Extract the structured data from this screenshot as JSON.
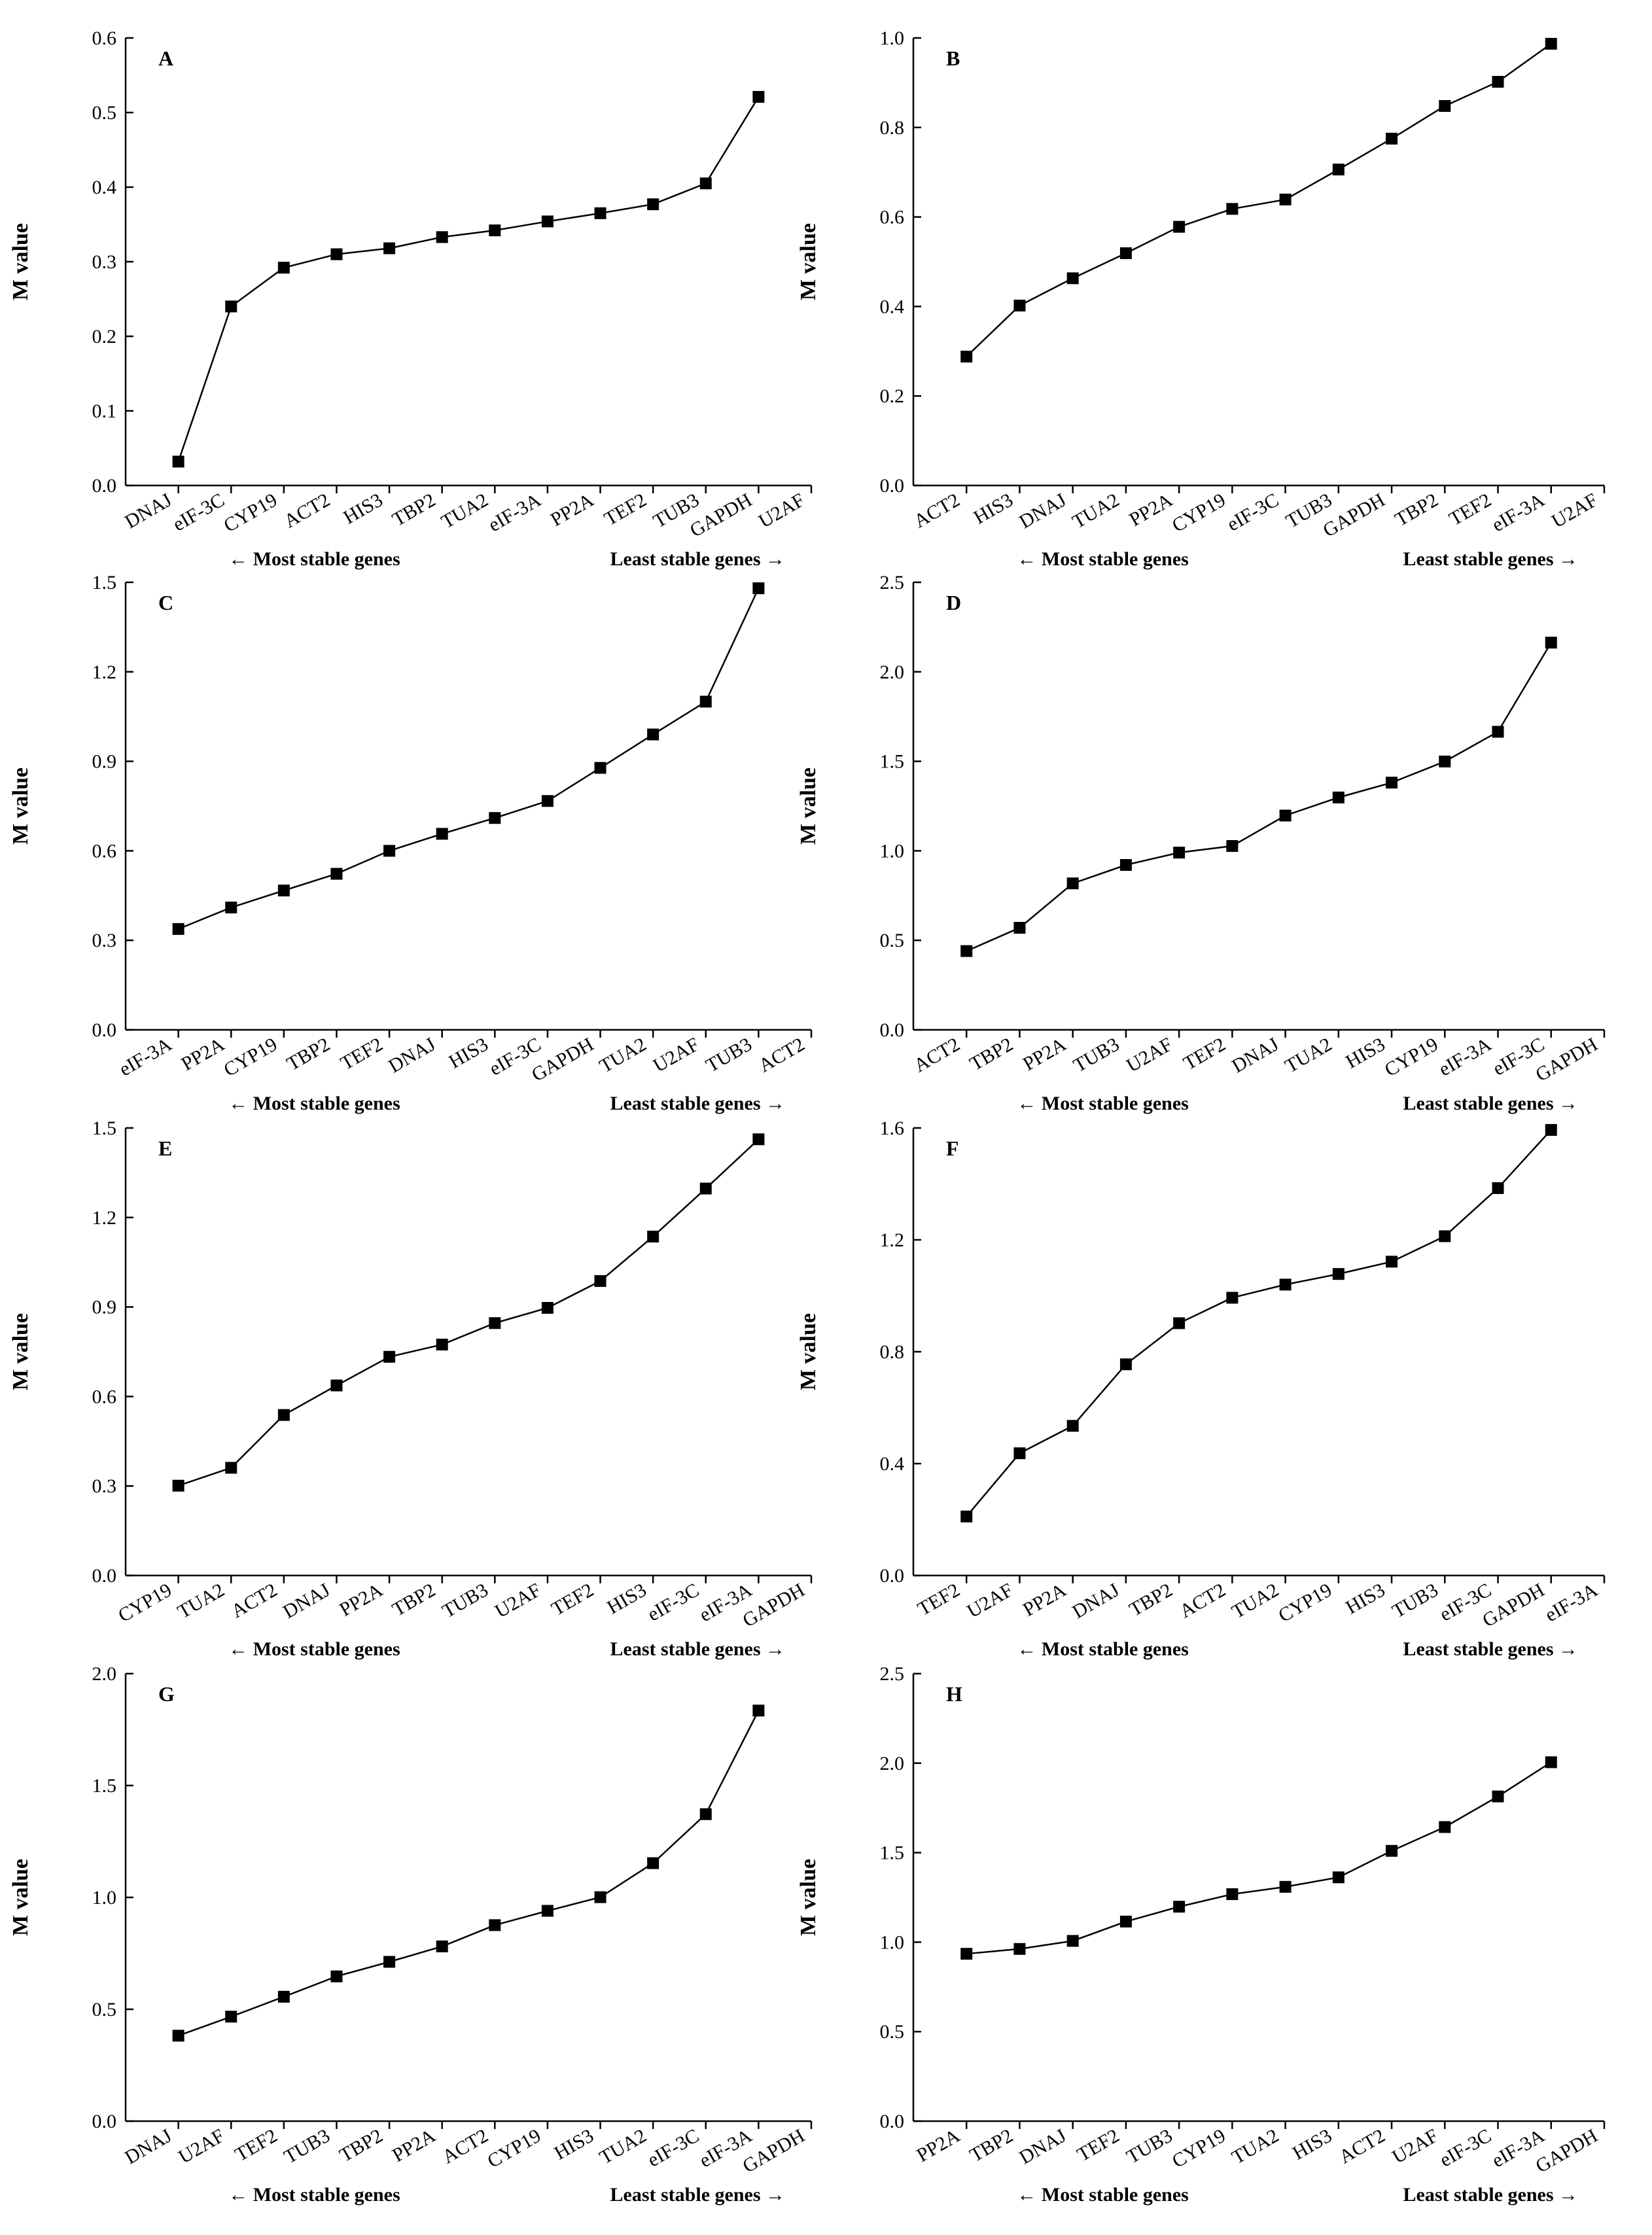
{
  "chart_data": [
    {
      "type": "line",
      "panel": "A",
      "ylabel": "M value",
      "ylim": [
        0,
        0.6
      ],
      "yticks": [
        "0.0",
        "0.1",
        "0.2",
        "0.3",
        "0.4",
        "0.5",
        "0.6"
      ],
      "categories": [
        "DNAJ",
        "eIF-3C",
        "CYP19",
        "ACT2",
        "HIS3",
        "TBP2",
        "TUA2",
        "eIF-3A",
        "PP2A",
        "TEF2",
        "TUB3",
        "GAPDH",
        "U2AF"
      ],
      "x": [
        1,
        2,
        3,
        4,
        5,
        6,
        7,
        8,
        9,
        10,
        11,
        12
      ],
      "values": [
        0.032,
        0.24,
        0.292,
        0.31,
        0.318,
        0.333,
        0.342,
        0.354,
        0.365,
        0.377,
        0.405,
        0.521
      ],
      "left_caption": "← Most stable genes",
      "right_caption": "Least stable genes →"
    },
    {
      "type": "line",
      "panel": "B",
      "ylabel": "M value",
      "ylim": [
        0,
        1.0
      ],
      "yticks": [
        "0.0",
        "0.2",
        "0.4",
        "0.6",
        "0.8",
        "1.0"
      ],
      "categories": [
        "ACT2",
        "HIS3",
        "DNAJ",
        "TUA2",
        "PP2A",
        "CYP19",
        "eIF-3C",
        "TUB3",
        "GAPDH",
        "TBP2",
        "TEF2",
        "eIF-3A",
        "U2AF"
      ],
      "x": [
        1,
        2,
        3,
        4,
        5,
        6,
        7,
        8,
        9,
        10,
        11,
        12
      ],
      "values": [
        0.288,
        0.402,
        0.463,
        0.519,
        0.578,
        0.618,
        0.639,
        0.706,
        0.775,
        0.848,
        0.902,
        0.987
      ],
      "left_caption": "← Most stable genes",
      "right_caption": "Least stable genes →"
    },
    {
      "type": "line",
      "panel": "C",
      "ylabel": "M value",
      "ylim": [
        0,
        1.5
      ],
      "yticks": [
        "0.0",
        "0.3",
        "0.6",
        "0.9",
        "1.2",
        "1.5"
      ],
      "categories": [
        "eIF-3A",
        "PP2A",
        "CYP19",
        "TBP2",
        "TEF2",
        "DNAJ",
        "HIS3",
        "eIF-3C",
        "GAPDH",
        "TUA2",
        "U2AF",
        "TUB3",
        "ACT2"
      ],
      "x": [
        1,
        2,
        3,
        4,
        5,
        6,
        7,
        8,
        9,
        10,
        11,
        12
      ],
      "values": [
        0.338,
        0.41,
        0.467,
        0.523,
        0.6,
        0.657,
        0.71,
        0.767,
        0.878,
        0.99,
        1.1,
        1.48
      ],
      "left_caption": "← Most stable genes",
      "right_caption": "Least stable genes →"
    },
    {
      "type": "line",
      "panel": "D",
      "ylabel": "M value",
      "ylim": [
        0,
        2.5
      ],
      "yticks": [
        "0.0",
        "0.5",
        "1.0",
        "1.5",
        "2.0",
        "2.5"
      ],
      "categories": [
        "ACT2",
        "TBP2",
        "PP2A",
        "TUB3",
        "U2AF",
        "TEF2",
        "DNAJ",
        "TUA2",
        "HIS3",
        "CYP19",
        "eIF-3A",
        "eIF-3C",
        "GAPDH"
      ],
      "x": [
        1,
        2,
        3,
        4,
        5,
        6,
        7,
        8,
        9,
        10,
        11,
        12
      ],
      "values": [
        0.44,
        0.57,
        0.818,
        0.921,
        0.99,
        1.027,
        1.197,
        1.298,
        1.381,
        1.499,
        1.665,
        2.163
      ],
      "left_caption": "← Most stable genes",
      "right_caption": "Least stable genes →"
    },
    {
      "type": "line",
      "panel": "E",
      "ylabel": "M value",
      "ylim": [
        0,
        1.5
      ],
      "yticks": [
        "0.0",
        "0.3",
        "0.6",
        "0.9",
        "1.2",
        "1.5"
      ],
      "categories": [
        "CYP19",
        "TUA2",
        "ACT2",
        "DNAJ",
        "PP2A",
        "TBP2",
        "TUB3",
        "U2AF",
        "TEF2",
        "HIS3",
        "eIF-3C",
        "eIF-3A",
        "GAPDH"
      ],
      "x": [
        1,
        2,
        3,
        4,
        5,
        6,
        7,
        8,
        9,
        10,
        11,
        12
      ],
      "values": [
        0.301,
        0.361,
        0.538,
        0.637,
        0.733,
        0.774,
        0.846,
        0.897,
        0.987,
        1.136,
        1.297,
        1.462
      ],
      "left_caption": "← Most stable genes",
      "right_caption": "Least stable genes →"
    },
    {
      "type": "line",
      "panel": "F",
      "ylabel": "M value",
      "ylim": [
        0,
        1.6
      ],
      "yticks": [
        "0.0",
        "0.4",
        "0.8",
        "1.2",
        "1.6"
      ],
      "categories": [
        "TEF2",
        "U2AF",
        "PP2A",
        "DNAJ",
        "TBP2",
        "ACT2",
        "TUA2",
        "CYP19",
        "HIS3",
        "TUB3",
        "eIF-3C",
        "GAPDH",
        "eIF-3A"
      ],
      "x": [
        1,
        2,
        3,
        4,
        5,
        6,
        7,
        8,
        9,
        10,
        11,
        12
      ],
      "values": [
        0.211,
        0.437,
        0.535,
        0.755,
        0.902,
        0.993,
        1.04,
        1.078,
        1.122,
        1.213,
        1.385,
        1.593
      ],
      "left_caption": "← Most stable genes",
      "right_caption": "Least stable genes →"
    },
    {
      "type": "line",
      "panel": "G",
      "ylabel": "M value",
      "ylim": [
        0,
        2.0
      ],
      "yticks": [
        "0.0",
        "0.5",
        "1.0",
        "1.5",
        "2.0"
      ],
      "categories": [
        "DNAJ",
        "U2AF",
        "TEF2",
        "TUB3",
        "TBP2",
        "PP2A",
        "ACT2",
        "CYP19",
        "HIS3",
        "TUA2",
        "eIF-3C",
        "eIF-3A",
        "GAPDH"
      ],
      "x": [
        1,
        2,
        3,
        4,
        5,
        6,
        7,
        8,
        9,
        10,
        11,
        12
      ],
      "values": [
        0.382,
        0.467,
        0.556,
        0.647,
        0.712,
        0.781,
        0.876,
        0.94,
        1.001,
        1.153,
        1.372,
        1.835
      ],
      "left_caption": "← Most stable genes",
      "right_caption": "Least stable genes →"
    },
    {
      "type": "line",
      "panel": "H",
      "ylabel": "M value",
      "ylim": [
        0,
        2.5
      ],
      "yticks": [
        "0.0",
        "0.5",
        "1.0",
        "1.5",
        "2.0",
        "2.5"
      ],
      "categories": [
        "PP2A",
        "TBP2",
        "DNAJ",
        "TEF2",
        "TUB3",
        "CYP19",
        "TUA2",
        "HIS3",
        "ACT2",
        "U2AF",
        "eIF-3C",
        "eIF-3A",
        "GAPDH"
      ],
      "x": [
        1,
        2,
        3,
        4,
        5,
        6,
        7,
        8,
        9,
        10,
        11,
        12
      ],
      "values": [
        0.935,
        0.962,
        1.007,
        1.115,
        1.198,
        1.268,
        1.309,
        1.362,
        1.51,
        1.643,
        1.814,
        2.005
      ],
      "left_caption": "← Most stable genes",
      "right_caption": "Least stable genes →"
    }
  ]
}
